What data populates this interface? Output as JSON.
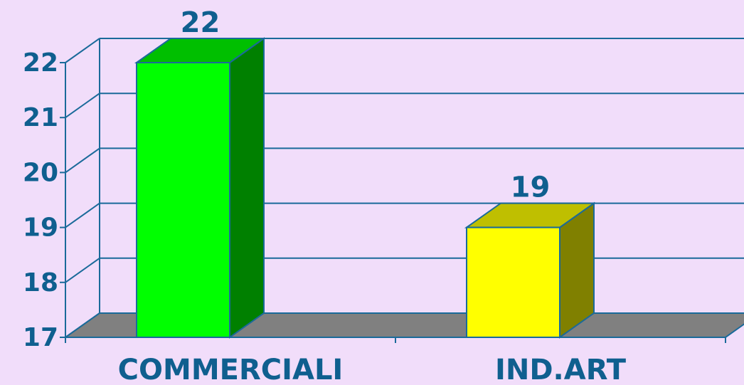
{
  "chart_data": {
    "type": "bar3d",
    "categories": [
      "COMMERCIALI",
      "IND.ART"
    ],
    "values": [
      22,
      19
    ],
    "colors": [
      "#00ff00",
      "#ffff00"
    ],
    "ylim": [
      17,
      22
    ],
    "yticks": [
      17,
      18,
      19,
      20,
      21,
      22
    ],
    "grid": true
  }
}
